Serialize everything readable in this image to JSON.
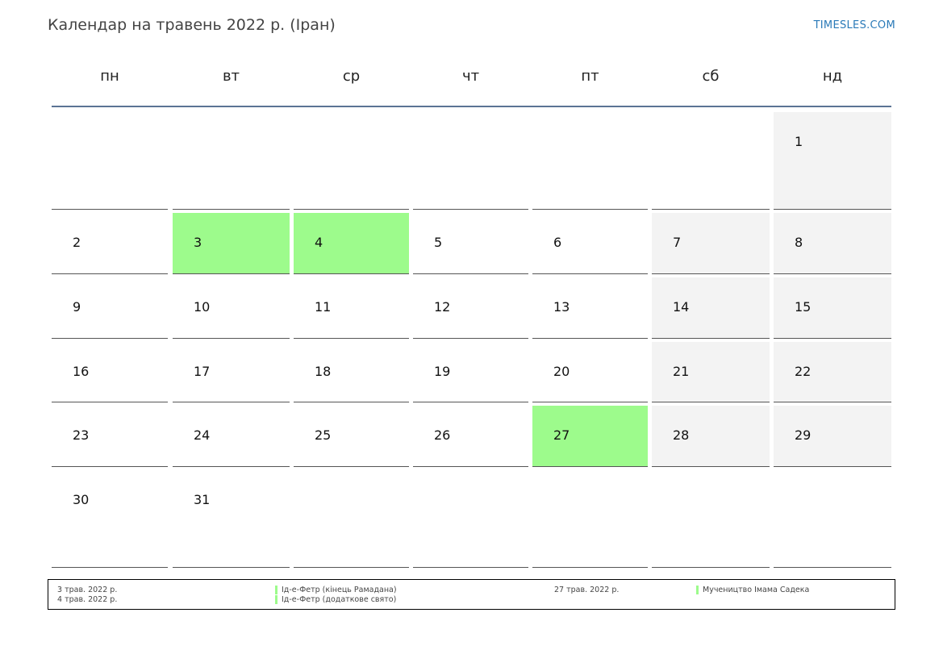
{
  "header": {
    "title": "Календар на травень 2022 р. (Іран)",
    "site": "TIMESLES.COM"
  },
  "colors": {
    "holiday": "#9dfb8c",
    "weekend": "#f3f3f3",
    "rule": "#5b7394",
    "link": "#2a7ab8"
  },
  "weekdays": [
    "пн",
    "вт",
    "ср",
    "чт",
    "пт",
    "сб",
    "нд"
  ],
  "weeks": [
    [
      {
        "day": ""
      },
      {
        "day": ""
      },
      {
        "day": ""
      },
      {
        "day": ""
      },
      {
        "day": ""
      },
      {
        "day": ""
      },
      {
        "day": "1",
        "weekend": true
      }
    ],
    [
      {
        "day": "2"
      },
      {
        "day": "3",
        "holiday": true
      },
      {
        "day": "4",
        "holiday": true
      },
      {
        "day": "5"
      },
      {
        "day": "6"
      },
      {
        "day": "7",
        "weekend": true
      },
      {
        "day": "8",
        "weekend": true
      }
    ],
    [
      {
        "day": "9"
      },
      {
        "day": "10"
      },
      {
        "day": "11"
      },
      {
        "day": "12"
      },
      {
        "day": "13"
      },
      {
        "day": "14",
        "weekend": true
      },
      {
        "day": "15",
        "weekend": true
      }
    ],
    [
      {
        "day": "16"
      },
      {
        "day": "17"
      },
      {
        "day": "18"
      },
      {
        "day": "19"
      },
      {
        "day": "20"
      },
      {
        "day": "21",
        "weekend": true
      },
      {
        "day": "22",
        "weekend": true
      }
    ],
    [
      {
        "day": "23"
      },
      {
        "day": "24"
      },
      {
        "day": "25"
      },
      {
        "day": "26"
      },
      {
        "day": "27",
        "holiday": true
      },
      {
        "day": "28",
        "weekend": true
      },
      {
        "day": "29",
        "weekend": true
      }
    ],
    [
      {
        "day": "30"
      },
      {
        "day": "31"
      },
      {
        "day": ""
      },
      {
        "day": ""
      },
      {
        "day": ""
      },
      {
        "day": ""
      },
      {
        "day": ""
      }
    ]
  ],
  "legend": {
    "left": [
      {
        "date": "3 трав. 2022 р.",
        "name": "Ід-е-Фетр (кінець Рамадана)"
      },
      {
        "date": "4 трав. 2022 р.",
        "name": "Ід-е-Фетр (додаткове свято)"
      }
    ],
    "right": [
      {
        "date": "27 трав. 2022 р.",
        "name": "Мучеництво Імама Садека"
      }
    ]
  }
}
